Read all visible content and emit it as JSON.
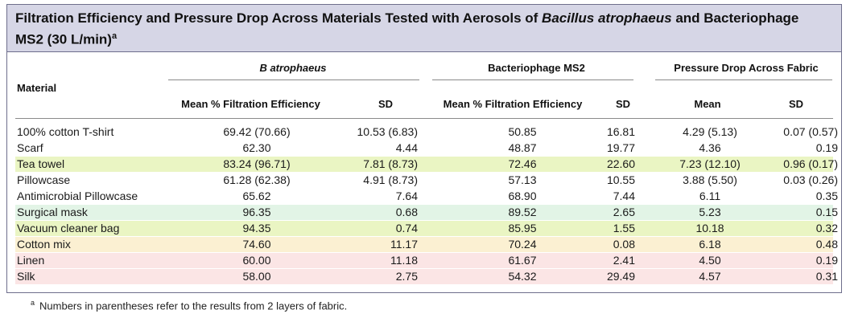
{
  "title": {
    "part1": "Filtration Efficiency and Pressure Drop Across Materials Tested with Aerosols of ",
    "italic": "Bacillus atrophaeus",
    "part2": " and Bacteriophage",
    "line2": "MS2 (30 L/min)",
    "sup": "a"
  },
  "headers": {
    "material": "Material",
    "group1": "B atrophaeus",
    "group2": "Bacteriophage MS2",
    "group3": "Pressure Drop Across Fabric",
    "mean_fe_1": "Mean % Filtration Efficiency",
    "sd_1": "SD",
    "mean_fe_2": "Mean % Filtration Efficiency",
    "sd_2": "SD",
    "mean_3": "Mean",
    "sd_3": "SD"
  },
  "rows": [
    {
      "material": "100% cotton T-shirt",
      "ba_mean": "69.42 (70.66)",
      "ba_sd": "10.53 (6.83)",
      "ms2_mean": "50.85",
      "ms2_sd": "16.81",
      "pd_mean": "4.29 (5.13)",
      "pd_sd": "0.07 (0.57)",
      "color": "#ffffff"
    },
    {
      "material": "Scarf",
      "ba_mean": "62.30",
      "ba_sd": "4.44",
      "ms2_mean": "48.87",
      "ms2_sd": "19.77",
      "pd_mean": "4.36",
      "pd_sd": "0.19",
      "color": "#ffffff"
    },
    {
      "material": "Tea towel",
      "ba_mean": "83.24 (96.71)",
      "ba_sd": "7.81 (8.73)",
      "ms2_mean": "72.46",
      "ms2_sd": "22.60",
      "pd_mean": "7.23 (12.10)",
      "pd_sd": "0.96 (0.17)",
      "color": "#eaf5c3"
    },
    {
      "material": "Pillowcase",
      "ba_mean": "61.28 (62.38)",
      "ba_sd": "4.91 (8.73)",
      "ms2_mean": "57.13",
      "ms2_sd": "10.55",
      "pd_mean": "3.88 (5.50)",
      "pd_sd": "0.03 (0.26)",
      "color": "#ffffff"
    },
    {
      "material": "Antimicrobial Pillowcase",
      "ba_mean": "65.62",
      "ba_sd": "7.64",
      "ms2_mean": "68.90",
      "ms2_sd": "7.44",
      "pd_mean": "6.11",
      "pd_sd": "0.35",
      "color": "#ffffff"
    },
    {
      "material": "Surgical mask",
      "ba_mean": "96.35",
      "ba_sd": "0.68",
      "ms2_mean": "89.52",
      "ms2_sd": "2.65",
      "pd_mean": "5.23",
      "pd_sd": "0.15",
      "color": "#e2f4e6"
    },
    {
      "material": "Vacuum cleaner bag",
      "ba_mean": "94.35",
      "ba_sd": "0.74",
      "ms2_mean": "85.95",
      "ms2_sd": "1.55",
      "pd_mean": "10.18",
      "pd_sd": "0.32",
      "color": "#eaf5c3"
    },
    {
      "material": "Cotton mix",
      "ba_mean": "74.60",
      "ba_sd": "11.17",
      "ms2_mean": "70.24",
      "ms2_sd": "0.08",
      "pd_mean": "6.18",
      "pd_sd": "0.48",
      "color": "#fbf0d2"
    },
    {
      "material": "Linen",
      "ba_mean": "60.00",
      "ba_sd": "11.18",
      "ms2_mean": "61.67",
      "ms2_sd": "2.41",
      "pd_mean": "4.50",
      "pd_sd": "0.19",
      "color": "#fbe5e5"
    },
    {
      "material": "Silk",
      "ba_mean": "58.00",
      "ba_sd": "2.75",
      "ms2_mean": "54.32",
      "ms2_sd": "29.49",
      "pd_mean": "4.57",
      "pd_sd": "0.31",
      "color": "#fbe5e5"
    }
  ],
  "footnote": {
    "marker": "a",
    "text": "Numbers in parentheses refer to the results from 2 layers of fabric."
  }
}
